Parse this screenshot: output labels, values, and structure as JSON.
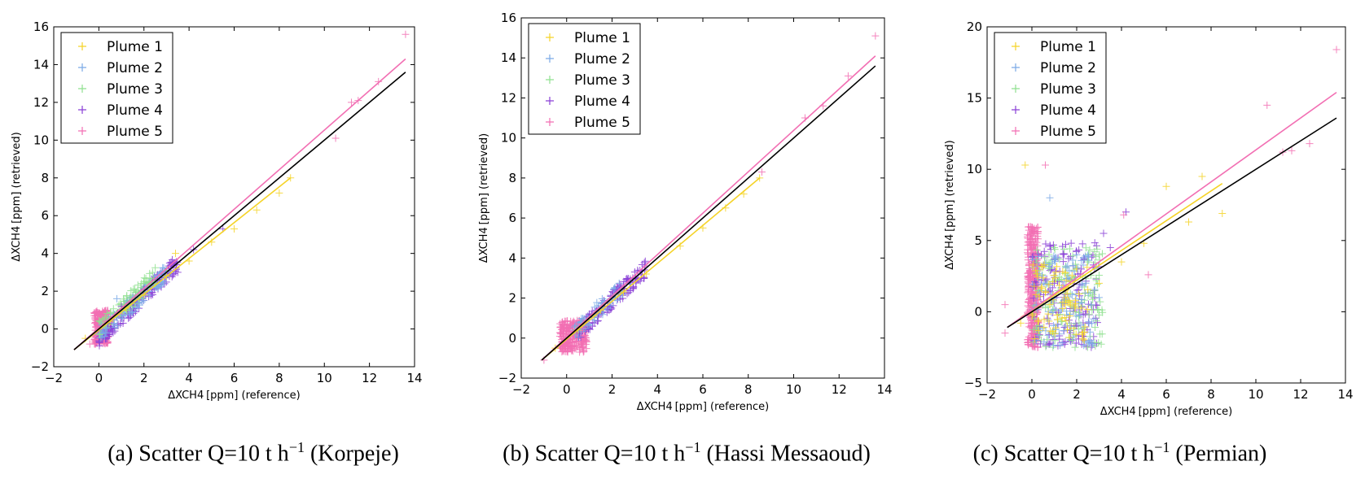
{
  "figure": {
    "panels": [
      {
        "caption_prefix": "(a) Scatter Q=10",
        "caption_unit": " t h",
        "caption_exp": "−1",
        "caption_suffix": " (Korpeje)"
      },
      {
        "caption_prefix": "(b) Scatter Q=10",
        "caption_unit": " t h",
        "caption_exp": "−1",
        "caption_suffix": " (Hassi Messaoud)"
      },
      {
        "caption_prefix": "(c) Scatter Q=10",
        "caption_unit": " t h",
        "caption_exp": "−1",
        "caption_suffix": " (Permian)"
      }
    ]
  },
  "chart_data": [
    {
      "type": "scatter",
      "title": "",
      "xlabel": "ΔXCH4 [ppm] (reference)",
      "ylabel": "ΔXCH4 [ppm] (retrieved)",
      "xlim": [
        -2,
        14
      ],
      "ylim": [
        -2,
        16
      ],
      "xticks": [
        -2,
        0,
        2,
        4,
        6,
        8,
        10,
        12,
        14
      ],
      "yticks": [
        -2,
        0,
        2,
        4,
        6,
        8,
        10,
        12,
        14,
        16
      ],
      "grid": false,
      "legend_position": "top-left",
      "series": [
        {
          "name": "Plume 1",
          "color": "#f5d327",
          "points": [
            [
              -0.6,
              -0.5
            ],
            [
              0.5,
              0.4
            ],
            [
              1.2,
              1.1
            ],
            [
              2.0,
              1.8
            ],
            [
              3.0,
              2.8
            ],
            [
              3.4,
              4.0
            ],
            [
              4.0,
              3.6
            ],
            [
              5.0,
              4.6
            ],
            [
              6.0,
              5.3
            ],
            [
              7.0,
              6.3
            ],
            [
              8.0,
              7.2
            ],
            [
              8.5,
              8.0
            ]
          ],
          "fit": [
            [
              -1.1,
              -1.1
            ],
            [
              8.5,
              8.0
            ]
          ]
        },
        {
          "name": "Plume 2",
          "color": "#7aa9e6",
          "points": [
            [
              0.1,
              0.2
            ],
            [
              0.8,
              1.6
            ],
            [
              1.0,
              0.9
            ],
            [
              1.5,
              1.7
            ],
            [
              2.2,
              2.0
            ],
            [
              2.8,
              2.5
            ],
            [
              3.2,
              3.0
            ]
          ],
          "fit": null
        },
        {
          "name": "Plume 3",
          "color": "#8fe08f",
          "points": [
            [
              0.3,
              0.6
            ],
            [
              1.0,
              1.3
            ],
            [
              1.8,
              1.6
            ],
            [
              2.5,
              2.4
            ],
            [
              3.0,
              3.1
            ]
          ],
          "fit": null
        },
        {
          "name": "Plume 4",
          "color": "#8a3fd6",
          "points": [
            [
              0.4,
              0.3
            ],
            [
              1.0,
              1.2
            ],
            [
              1.5,
              1.4
            ],
            [
              2.0,
              2.1
            ],
            [
              2.6,
              2.6
            ],
            [
              3.2,
              3.3
            ],
            [
              3.5,
              3.0
            ],
            [
              4.2,
              4.2
            ],
            [
              5.5,
              5.3
            ]
          ],
          "fit": null
        },
        {
          "name": "Plume 5",
          "color": "#f26fb3",
          "points": [
            [
              -0.4,
              -0.8
            ],
            [
              0.0,
              0.0
            ],
            [
              0.3,
              0.4
            ],
            [
              0.6,
              0.5
            ],
            [
              0.9,
              0.8
            ],
            [
              11.2,
              12.0
            ],
            [
              11.5,
              12.1
            ],
            [
              12.4,
              13.1
            ],
            [
              10.5,
              10.1
            ],
            [
              13.6,
              15.6
            ]
          ],
          "fit": [
            [
              -1.1,
              -1.1
            ],
            [
              13.6,
              14.3
            ]
          ]
        }
      ],
      "reference_line": [
        [
          -1.1,
          -1.1
        ],
        [
          13.6,
          13.6
        ]
      ],
      "clusters": [
        {
          "series": 4,
          "x": [
            -0.2,
            0.4
          ],
          "y": [
            -0.8,
            1.0
          ],
          "n": 280
        },
        {
          "series": 3,
          "x": [
            0.0,
            3.5
          ],
          "y": [
            -0.5,
            3.5
          ],
          "n": 180,
          "diag": true
        },
        {
          "series": 1,
          "x": [
            0.0,
            3.0
          ],
          "y": [
            -0.3,
            3.0
          ],
          "n": 120,
          "diag": true
        },
        {
          "series": 2,
          "x": [
            0.0,
            2.5
          ],
          "y": [
            0.0,
            2.8
          ],
          "n": 80,
          "diag": true
        }
      ]
    },
    {
      "type": "scatter",
      "title": "",
      "xlabel": "ΔXCH4 [ppm] (reference)",
      "ylabel": "ΔXCH4 [ppm] (retrieved)",
      "xlim": [
        -2,
        14
      ],
      "ylim": [
        -2,
        16
      ],
      "xticks": [
        -2,
        0,
        2,
        4,
        6,
        8,
        10,
        12,
        14
      ],
      "yticks": [
        -2,
        0,
        2,
        4,
        6,
        8,
        10,
        12,
        14,
        16
      ],
      "grid": false,
      "legend_position": "top-left",
      "series": [
        {
          "name": "Plume 1",
          "color": "#f5d327",
          "points": [
            [
              -0.5,
              -0.5
            ],
            [
              0.5,
              0.4
            ],
            [
              1.5,
              1.4
            ],
            [
              2.5,
              2.3
            ],
            [
              3.5,
              3.2
            ],
            [
              5.0,
              4.6
            ],
            [
              6.0,
              5.5
            ],
            [
              7.0,
              6.5
            ],
            [
              7.8,
              7.2
            ],
            [
              8.5,
              8.0
            ]
          ],
          "fit": [
            [
              -1.1,
              -1.1
            ],
            [
              8.5,
              8.0
            ]
          ]
        },
        {
          "name": "Plume 2",
          "color": "#7aa9e6",
          "points": [
            [
              0.6,
              0.8
            ],
            [
              1.4,
              1.4
            ],
            [
              2.0,
              2.0
            ],
            [
              2.8,
              2.7
            ]
          ],
          "fit": null
        },
        {
          "name": "Plume 3",
          "color": "#8fe08f",
          "points": [
            [
              0.4,
              0.4
            ],
            [
              1.2,
              1.1
            ],
            [
              2.2,
              2.2
            ]
          ],
          "fit": null
        },
        {
          "name": "Plume 4",
          "color": "#8a3fd6",
          "points": [
            [
              1.0,
              1.2
            ],
            [
              1.8,
              1.6
            ],
            [
              2.5,
              2.6
            ],
            [
              3.0,
              3.3
            ],
            [
              3.4,
              3.0
            ],
            [
              2.2,
              2.4
            ]
          ],
          "fit": null
        },
        {
          "name": "Plume 5",
          "color": "#f26fb3",
          "points": [
            [
              -1.0,
              -1.1
            ],
            [
              -0.3,
              -0.4
            ],
            [
              0.3,
              0.2
            ],
            [
              0.7,
              0.5
            ],
            [
              10.5,
              11.0
            ],
            [
              11.3,
              11.6
            ],
            [
              12.4,
              13.1
            ],
            [
              13.6,
              15.1
            ],
            [
              8.6,
              8.3
            ]
          ],
          "fit": [
            [
              -1.1,
              -1.1
            ],
            [
              13.6,
              14.1
            ]
          ]
        }
      ],
      "reference_line": [
        [
          -1.1,
          -1.1
        ],
        [
          13.6,
          13.6
        ]
      ],
      "clusters": [
        {
          "series": 4,
          "x": [
            -0.3,
            0.9
          ],
          "y": [
            -0.7,
            0.9
          ],
          "n": 260
        },
        {
          "series": 3,
          "x": [
            0.5,
            3.5
          ],
          "y": [
            0.3,
            3.5
          ],
          "n": 120,
          "diag": true
        },
        {
          "series": 1,
          "x": [
            0.3,
            2.5
          ],
          "y": [
            0.3,
            2.5
          ],
          "n": 60,
          "diag": true
        }
      ]
    },
    {
      "type": "scatter",
      "title": "",
      "xlabel": "ΔXCH4 [ppm] (reference)",
      "ylabel": "ΔXCH4 [ppm] (retrieved)",
      "xlim": [
        -2,
        14
      ],
      "ylim": [
        -5,
        20
      ],
      "xticks": [
        -2,
        0,
        2,
        4,
        6,
        8,
        10,
        12,
        14
      ],
      "yticks": [
        -5,
        0,
        5,
        10,
        15,
        20
      ],
      "grid": false,
      "legend_position": "top-left",
      "series": [
        {
          "name": "Plume 1",
          "color": "#f5d327",
          "points": [
            [
              -0.5,
              -0.8
            ],
            [
              0.8,
              0.5
            ],
            [
              1.5,
              1.0
            ],
            [
              2.0,
              3.0
            ],
            [
              3.0,
              2.0
            ],
            [
              4.0,
              3.5
            ],
            [
              5.0,
              4.8
            ],
            [
              6.0,
              8.8
            ],
            [
              7.0,
              6.3
            ],
            [
              7.6,
              9.5
            ],
            [
              8.5,
              6.9
            ],
            [
              -0.3,
              10.3
            ]
          ],
          "fit": [
            [
              -0.5,
              -0.4
            ],
            [
              8.5,
              9.0
            ]
          ]
        },
        {
          "name": "Plume 2",
          "color": "#7aa9e6",
          "points": [
            [
              0.8,
              8.0
            ],
            [
              1.5,
              -1.0
            ],
            [
              2.0,
              4.0
            ],
            [
              2.6,
              -2.0
            ],
            [
              3.0,
              1.0
            ]
          ],
          "fit": null
        },
        {
          "name": "Plume 3",
          "color": "#8fe08f",
          "points": [
            [
              1.0,
              4.5
            ],
            [
              2.5,
              3.5
            ],
            [
              1.8,
              -2.0
            ],
            [
              3.0,
              4.0
            ]
          ],
          "fit": null
        },
        {
          "name": "Plume 4",
          "color": "#8a3fd6",
          "points": [
            [
              1.0,
              2.0
            ],
            [
              2.2,
              3.0
            ],
            [
              3.2,
              5.5
            ],
            [
              3.5,
              4.5
            ],
            [
              2.0,
              -1.0
            ],
            [
              4.2,
              7.0
            ]
          ],
          "fit": null
        },
        {
          "name": "Plume 5",
          "color": "#f26fb3",
          "points": [
            [
              -1.2,
              0.5
            ],
            [
              -1.2,
              -1.5
            ],
            [
              0.6,
              10.3
            ],
            [
              10.5,
              14.5
            ],
            [
              11.2,
              11.2
            ],
            [
              11.6,
              11.3
            ],
            [
              12.4,
              11.8
            ],
            [
              13.6,
              18.4
            ],
            [
              5.2,
              2.6
            ],
            [
              4.1,
              6.8
            ]
          ],
          "fit": [
            [
              -1.1,
              -1.1
            ],
            [
              13.6,
              15.4
            ]
          ]
        }
      ],
      "reference_line": [
        [
          -1.1,
          -1.1
        ],
        [
          13.6,
          13.6
        ]
      ],
      "clusters": [
        {
          "series": 4,
          "x": [
            -0.2,
            0.3
          ],
          "y": [
            -2.5,
            6.0
          ],
          "n": 320
        },
        {
          "series": 3,
          "x": [
            0.0,
            3.0
          ],
          "y": [
            -2.5,
            5.0
          ],
          "n": 160
        },
        {
          "series": 2,
          "x": [
            0.0,
            3.2
          ],
          "y": [
            -2.5,
            4.5
          ],
          "n": 140
        },
        {
          "series": 1,
          "x": [
            0.0,
            2.8
          ],
          "y": [
            -2.5,
            4.0
          ],
          "n": 110
        },
        {
          "series": 0,
          "x": [
            0.0,
            2.5
          ],
          "y": [
            -2.0,
            3.5
          ],
          "n": 80
        }
      ]
    }
  ]
}
